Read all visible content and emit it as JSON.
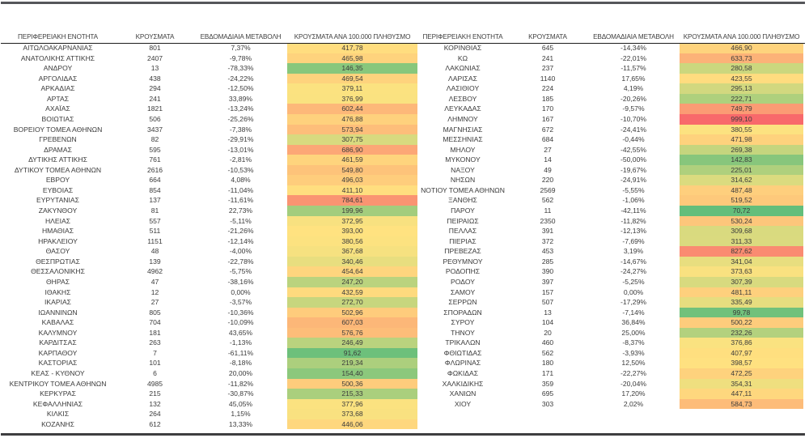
{
  "chart_data": {
    "type": "table",
    "columns": [
      "ΠΕΡΙΦΕΡΕΙΑΚΗ ΕΝΟΤΗΤΑ",
      "ΚΡΟΥΣΜΑΤΑ",
      "ΕΒΔΟΜΑΔΙΑΙΑ ΜΕΤΑΒΟΛΗ",
      "ΚΡΟΥΣΜΑΤΑ ΑΝΑ 100.000 ΠΛΗΘΥΣΜΟ"
    ],
    "heatmap": {
      "applies_to_column": "ΚΡΟΥΣΜΑΤΑ ΑΝΑ 100.000 ΠΛΗΘΥΣΜΟ",
      "min_color": "#63BE7B",
      "mid_color": "#FFE380",
      "max_color": "#F8696B",
      "midpoint": "median"
    },
    "tables": [
      {
        "rows": [
          [
            "ΑΙΤΩΛΟΑΚΑΡΝΑΝΙΑΣ",
            "801",
            "7,37%",
            "417,78"
          ],
          [
            "ΑΝΑΤΟΛΙΚΗΣ ΑΤΤΙΚΗΣ",
            "2407",
            "-9,78%",
            "465,98"
          ],
          [
            "ΑΝΔΡΟΥ",
            "13",
            "-78,33%",
            "146,35"
          ],
          [
            "ΑΡΓΟΛΙΔΑΣ",
            "438",
            "-24,22%",
            "469,54"
          ],
          [
            "ΑΡΚΑΔΙΑΣ",
            "294",
            "-12,50%",
            "379,11"
          ],
          [
            "ΑΡΤΑΣ",
            "241",
            "33,89%",
            "376,99"
          ],
          [
            "ΑΧΑΪΑΣ",
            "1821",
            "-13,24%",
            "602,44"
          ],
          [
            "ΒΟΙΩΤΙΑΣ",
            "506",
            "-25,26%",
            "476,88"
          ],
          [
            "ΒΟΡΕΙΟΥ ΤΟΜΕΑ ΑΘΗΝΩΝ",
            "3437",
            "-7,38%",
            "573,94"
          ],
          [
            "ΓΡΕΒΕΝΩΝ",
            "82",
            "-29,91%",
            "307,75"
          ],
          [
            "ΔΡΑΜΑΣ",
            "595",
            "-13,01%",
            "686,90"
          ],
          [
            "ΔΥΤΙΚΗΣ ΑΤΤΙΚΗΣ",
            "761",
            "-2,81%",
            "461,59"
          ],
          [
            "ΔΥΤΙΚΟΥ ΤΟΜΕΑ ΑΘΗΝΩΝ",
            "2616",
            "-10,53%",
            "549,80"
          ],
          [
            "ΕΒΡΟΥ",
            "664",
            "4,08%",
            "496,03"
          ],
          [
            "ΕΥΒΟΙΑΣ",
            "854",
            "-11,04%",
            "411,10"
          ],
          [
            "ΕΥΡΥΤΑΝΙΑΣ",
            "137",
            "-11,61%",
            "784,61"
          ],
          [
            "ΖΑΚΥΝΘΟΥ",
            "81",
            "22,73%",
            "199,96"
          ],
          [
            "ΗΛΕΙΑΣ",
            "557",
            "-5,11%",
            "372,95"
          ],
          [
            "ΗΜΑΘΙΑΣ",
            "511",
            "-21,26%",
            "393,00"
          ],
          [
            "ΗΡΑΚΛΕΙΟΥ",
            "1151",
            "-12,14%",
            "380,56"
          ],
          [
            "ΘΑΣΟΥ",
            "48",
            "-4,00%",
            "367,68"
          ],
          [
            "ΘΕΣΠΡΩΤΙΑΣ",
            "139",
            "-22,78%",
            "340,46"
          ],
          [
            "ΘΕΣΣΑΛΟΝΙΚΗΣ",
            "4962",
            "-5,75%",
            "454,64"
          ],
          [
            "ΘΗΡΑΣ",
            "47",
            "-38,16%",
            "247,20"
          ],
          [
            "ΙΘΑΚΗΣ",
            "12",
            "0,00%",
            "432,59"
          ],
          [
            "ΙΚΑΡΙΑΣ",
            "27",
            "-3,57%",
            "272,70"
          ],
          [
            "ΙΩΑΝΝΙΝΩΝ",
            "805",
            "-10,36%",
            "502,96"
          ],
          [
            "ΚΑΒΑΛΑΣ",
            "704",
            "-10,09%",
            "607,03"
          ],
          [
            "ΚΑΛΥΜΝΟΥ",
            "181",
            "43,65%",
            "576,76"
          ],
          [
            "ΚΑΡΔΙΤΣΑΣ",
            "263",
            "-1,13%",
            "246,49"
          ],
          [
            "ΚΑΡΠΑΘΟΥ",
            "7",
            "-61,11%",
            "91,62"
          ],
          [
            "ΚΑΣΤΟΡΙΑΣ",
            "101",
            "-8,18%",
            "219,34"
          ],
          [
            "ΚΕΑΣ - ΚΥΘΝΟΥ",
            "6",
            "20,00%",
            "154,40"
          ],
          [
            "ΚΕΝΤΡΙΚΟΥ ΤΟΜΕΑ ΑΘΗΝΩΝ",
            "4985",
            "-11,82%",
            "500,36"
          ],
          [
            "ΚΕΡΚΥΡΑΣ",
            "215",
            "-30,87%",
            "215,33"
          ],
          [
            "ΚΕΦΑΛΛΗΝΙΑΣ",
            "132",
            "45,05%",
            "377,96"
          ],
          [
            "ΚΙΛΚΙΣ",
            "264",
            "1,15%",
            "373,68"
          ],
          [
            "ΚΟΖΑΝΗΣ",
            "612",
            "13,33%",
            "446,06"
          ]
        ]
      },
      {
        "rows": [
          [
            "ΚΟΡΙΝΘΙΑΣ",
            "645",
            "-14,34%",
            "466,90"
          ],
          [
            "ΚΩ",
            "241",
            "-22,01%",
            "633,73"
          ],
          [
            "ΛΑΚΩΝΙΑΣ",
            "237",
            "-11,57%",
            "280,58"
          ],
          [
            "ΛΑΡΙΣΑΣ",
            "1140",
            "17,65%",
            "423,55"
          ],
          [
            "ΛΑΣΙΘΙΟΥ",
            "224",
            "4,19%",
            "295,13"
          ],
          [
            "ΛΕΣΒΟΥ",
            "185",
            "-20,26%",
            "222,71"
          ],
          [
            "ΛΕΥΚΑΔΑΣ",
            "170",
            "-9,57%",
            "749,79"
          ],
          [
            "ΛΗΜΝΟΥ",
            "167",
            "-10,70%",
            "999,10"
          ],
          [
            "ΜΑΓΝΗΣΙΑΣ",
            "672",
            "-24,41%",
            "380,55"
          ],
          [
            "ΜΕΣΣΗΝΙΑΣ",
            "684",
            "-0,44%",
            "471,98"
          ],
          [
            "ΜΗΛΟΥ",
            "27",
            "-42,55%",
            "269,38"
          ],
          [
            "ΜΥΚΟΝΟΥ",
            "14",
            "-50,00%",
            "142,83"
          ],
          [
            "ΝΑΞΟΥ",
            "49",
            "-19,67%",
            "225,01"
          ],
          [
            "ΝΗΣΩΝ",
            "220",
            "-24,91%",
            "314,62"
          ],
          [
            "ΝΟΤΙΟΥ ΤΟΜΕΑ ΑΘΗΝΩΝ",
            "2569",
            "-5,55%",
            "487,48"
          ],
          [
            "ΞΑΝΘΗΣ",
            "562",
            "-1,06%",
            "519,52"
          ],
          [
            "ΠΑΡΟΥ",
            "11",
            "-42,11%",
            "70,72"
          ],
          [
            "ΠΕΙΡΑΙΩΣ",
            "2350",
            "-11,82%",
            "530,24"
          ],
          [
            "ΠΕΛΛΑΣ",
            "391",
            "-12,13%",
            "309,68"
          ],
          [
            "ΠΙΕΡΙΑΣ",
            "372",
            "-7,69%",
            "311,33"
          ],
          [
            "ΠΡΕΒΕΖΑΣ",
            "453",
            "3,19%",
            "827,62"
          ],
          [
            "ΡΕΘΥΜΝΟΥ",
            "285",
            "-14,67%",
            "341,04"
          ],
          [
            "ΡΟΔΟΠΗΣ",
            "390",
            "-24,27%",
            "373,63"
          ],
          [
            "ΡΟΔΟΥ",
            "397",
            "-5,25%",
            "307,39"
          ],
          [
            "ΣΑΜΟΥ",
            "157",
            "0,00%",
            "481,11"
          ],
          [
            "ΣΕΡΡΩΝ",
            "507",
            "-17,29%",
            "335,49"
          ],
          [
            "ΣΠΟΡΑΔΩΝ",
            "13",
            "-7,14%",
            "99,78"
          ],
          [
            "ΣΥΡΟΥ",
            "104",
            "36,84%",
            "500,22"
          ],
          [
            "ΤΗΝΟΥ",
            "20",
            "25,00%",
            "232,26"
          ],
          [
            "ΤΡΙΚΑΛΩΝ",
            "460",
            "-8,37%",
            "376,86"
          ],
          [
            "ΦΘΙΩΤΙΔΑΣ",
            "562",
            "-3,93%",
            "407,97"
          ],
          [
            "ΦΛΩΡΙΝΑΣ",
            "180",
            "12,50%",
            "398,57"
          ],
          [
            "ΦΩΚΙΔΑΣ",
            "171",
            "-22,27%",
            "472,25"
          ],
          [
            "ΧΑΛΚΙΔΙΚΗΣ",
            "359",
            "-20,04%",
            "354,31"
          ],
          [
            "ΧΑΝΙΩΝ",
            "695",
            "17,20%",
            "447,11"
          ],
          [
            "ΧΙΟΥ",
            "303",
            "2,02%",
            "584,73"
          ]
        ]
      }
    ]
  }
}
